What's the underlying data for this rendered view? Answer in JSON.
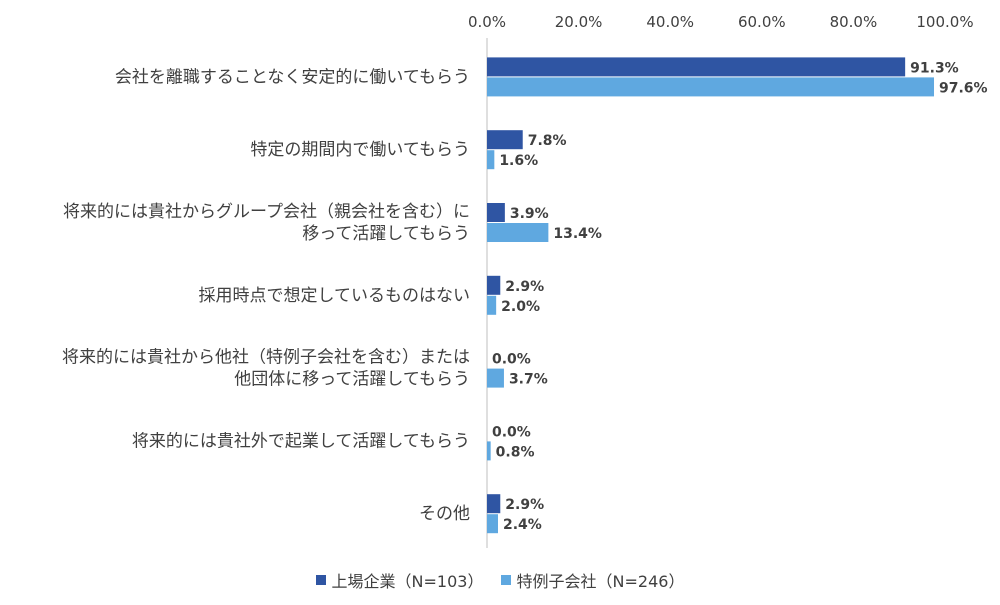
{
  "colors": {
    "series1": "#2F55A3",
    "series2": "#5FA8E0",
    "axis": "#BFBFBF",
    "text": "#404040"
  },
  "chart_data": {
    "type": "bar",
    "orientation": "horizontal",
    "title": "",
    "xlabel": "",
    "ylabel": "",
    "xlim": [
      0,
      100
    ],
    "ticks": [
      {
        "value": 0,
        "label": "0.0%"
      },
      {
        "value": 20,
        "label": "20.0%"
      },
      {
        "value": 40,
        "label": "40.0%"
      },
      {
        "value": 60,
        "label": "60.0%"
      },
      {
        "value": 80,
        "label": "80.0%"
      },
      {
        "value": 100,
        "label": "100.0%"
      }
    ],
    "categories": [
      [
        "会社を離職することなく安定的に働いてもらう"
      ],
      [
        "特定の期間内で働いてもらう"
      ],
      [
        "将来的には貴社からグループ会社（親会社を含む）に",
        "移って活躍してもらう"
      ],
      [
        "採用時点で想定しているものはない"
      ],
      [
        "将来的には貴社から他社（特例子会社を含む）または",
        "他団体に移って活躍してもらう"
      ],
      [
        "将来的には貴社外で起業して活躍してもらう"
      ],
      [
        "その他"
      ]
    ],
    "series": [
      {
        "name": "上場企業（N=103）",
        "values": [
          91.3,
          7.8,
          3.9,
          2.9,
          0.0,
          0.0,
          2.9
        ],
        "labels": [
          "91.3%",
          "7.8%",
          "3.9%",
          "2.9%",
          "0.0%",
          "0.0%",
          "2.9%"
        ]
      },
      {
        "name": "特例子会社（N=246）",
        "values": [
          97.6,
          1.6,
          13.4,
          2.0,
          3.7,
          0.8,
          2.4
        ],
        "labels": [
          "97.6%",
          "1.6%",
          "13.4%",
          "2.0%",
          "3.7%",
          "0.8%",
          "2.4%"
        ]
      }
    ],
    "legend_position": "bottom"
  }
}
